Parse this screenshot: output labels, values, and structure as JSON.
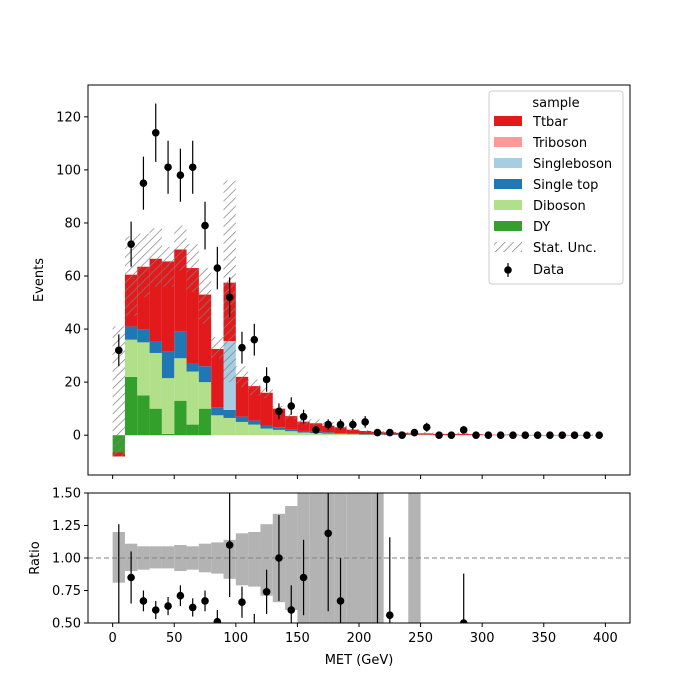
{
  "chart_data": [
    {
      "type": "stacked-histogram",
      "ylabel": "Events",
      "xlim": [
        -20,
        420
      ],
      "ylim": [
        -15,
        132
      ],
      "x_ticks": [
        "0",
        "50",
        "100",
        "150",
        "200",
        "250",
        "300",
        "350",
        "400"
      ],
      "y_ticks": [
        "0",
        "20",
        "40",
        "60",
        "80",
        "100",
        "120"
      ],
      "bin_edges": [
        0,
        10,
        20,
        30,
        40,
        50,
        60,
        70,
        80,
        90,
        100,
        110,
        120,
        130,
        140,
        150,
        160,
        170,
        180,
        190,
        200,
        210,
        220,
        230,
        240,
        250,
        260,
        270,
        280,
        290,
        300,
        310,
        320,
        330,
        340,
        350,
        360,
        370,
        380,
        390,
        400
      ],
      "legend_title": "sample",
      "legend_position": "top-right",
      "series": [
        {
          "name": "DY",
          "color": "#33a02c",
          "values": [
            -8,
            22,
            15,
            10,
            0.5,
            13,
            4,
            10,
            0,
            0,
            0,
            0,
            0,
            0,
            0,
            0,
            0,
            0,
            0,
            0,
            0,
            0,
            0,
            0,
            0,
            0,
            0,
            0,
            0,
            0,
            0,
            0,
            0,
            0,
            0,
            0,
            0,
            0,
            0,
            0
          ]
        },
        {
          "name": "Diboson",
          "color": "#b2df8a",
          "values": [
            0,
            14,
            20,
            21,
            21,
            16,
            20,
            10,
            7.5,
            6.5,
            5,
            4,
            2.5,
            2,
            1.5,
            1,
            0.8,
            0.6,
            0.5,
            0.4,
            0.3,
            0.3,
            0.2,
            0.2,
            0.2,
            0.2,
            0.1,
            0.1,
            0.1,
            0.1,
            0,
            0,
            0,
            0,
            0,
            0,
            0,
            0,
            0,
            0
          ]
        },
        {
          "name": "Single top",
          "color": "#1f78b4",
          "values": [
            0,
            5,
            5,
            4.5,
            10,
            10,
            3,
            6,
            3,
            3,
            2,
            1.5,
            1,
            1,
            0.7,
            0.6,
            0.5,
            0.5,
            0.3,
            0.2,
            0.1,
            0.1,
            0.1,
            0.1,
            0,
            0,
            0,
            0,
            0,
            0,
            0,
            0,
            0,
            0,
            0,
            0,
            0,
            0,
            0,
            0
          ]
        },
        {
          "name": "Singleboson",
          "color": "#a6cee3",
          "values": [
            0,
            0,
            0,
            0,
            0,
            0,
            0,
            0,
            0,
            26,
            0,
            0,
            0,
            0,
            0,
            0,
            0,
            0,
            0,
            0,
            0,
            0,
            0,
            0,
            0,
            0,
            0,
            0,
            0,
            0,
            0,
            0,
            0,
            0,
            0,
            0,
            0,
            0,
            0,
            0
          ]
        },
        {
          "name": "Triboson",
          "color": "#fb9a99",
          "values": [
            0,
            0,
            0,
            0,
            0,
            0,
            0,
            0,
            0,
            0,
            0,
            0,
            0,
            0,
            0,
            0,
            0,
            0,
            0,
            0,
            0,
            0,
            0,
            0,
            0,
            0,
            0,
            0,
            0,
            0,
            0,
            0,
            0,
            0,
            0,
            0,
            0,
            0,
            0,
            0
          ]
        },
        {
          "name": "Ttbar",
          "color": "#e31a1c",
          "values": [
            1.5,
            19.5,
            23.5,
            31,
            34,
            31,
            36,
            27,
            22,
            22,
            15,
            13,
            12.5,
            7,
            5,
            3.5,
            3.2,
            2.5,
            2.2,
            1.5,
            1.2,
            0.9,
            0.8,
            0.6,
            0.5,
            0.5,
            0.4,
            0.4,
            0.4,
            0.3,
            0.2,
            0.2,
            0.2,
            0.1,
            0.1,
            0.1,
            0.1,
            0.1,
            0.1,
            0
          ]
        }
      ],
      "stat_unc": {
        "name": "Stat. Unc.",
        "up": [
          41,
          75,
          76,
          78,
          71,
          79,
          72,
          63,
          37,
          96,
          26,
          21,
          18,
          11,
          8,
          7,
          6,
          5,
          4,
          3,
          2,
          2,
          1.5,
          1.5,
          1,
          1.2,
          1,
          1,
          1,
          0.7,
          0.5,
          0.5,
          0.4,
          0.3,
          0.2,
          0.2,
          0.2,
          0.2,
          0.2,
          0.1
        ],
        "down": [
          -8,
          45,
          52,
          56,
          56,
          62,
          54,
          42,
          29,
          20,
          18,
          15,
          14,
          9,
          6,
          4,
          3.8,
          3.2,
          2.5,
          1.6,
          1,
          0.5,
          0.5,
          0.2,
          0,
          0,
          0,
          0,
          0,
          0,
          0,
          0,
          0,
          0,
          0,
          0,
          0,
          0,
          0,
          0
        ]
      },
      "data": {
        "name": "Data",
        "x": [
          5,
          15,
          25,
          35,
          45,
          55,
          65,
          75,
          85,
          95,
          105,
          115,
          125,
          135,
          145,
          155,
          165,
          175,
          185,
          195,
          205,
          215,
          225,
          235,
          245,
          255,
          265,
          275,
          285,
          295,
          305,
          315,
          325,
          335,
          345,
          355,
          365,
          375,
          385,
          395
        ],
        "y": [
          32,
          72,
          95,
          114,
          101,
          98,
          101,
          79,
          63,
          52,
          33,
          36,
          21,
          9,
          11,
          7,
          2,
          4,
          4,
          4,
          5,
          1,
          1,
          0,
          1,
          3,
          0,
          0,
          2,
          0,
          0,
          0,
          0,
          0,
          0,
          0,
          0,
          0,
          0,
          0
        ],
        "yerr": [
          6,
          8.5,
          10,
          11,
          10,
          10,
          10,
          9,
          8,
          7.5,
          6,
          6,
          4.6,
          3,
          3.3,
          2.6,
          1.4,
          2,
          2,
          2,
          2.2,
          1,
          1,
          0,
          1,
          1.7,
          0,
          0,
          1.4,
          0,
          0,
          0,
          0,
          0,
          0,
          0,
          0,
          0,
          0,
          0
        ]
      }
    },
    {
      "type": "ratio",
      "xlabel": "MET (GeV)",
      "ylabel": "Ratio",
      "xlim": [
        -20,
        420
      ],
      "ylim": [
        0.5,
        1.5
      ],
      "reference_line": 1.0,
      "x_ticks": [
        "0",
        "50",
        "100",
        "150",
        "200",
        "250",
        "300",
        "350",
        "400"
      ],
      "y_ticks": [
        "0.50",
        "0.75",
        "1.00",
        "1.25",
        "1.50"
      ],
      "band_up": [
        1.2,
        1.11,
        1.09,
        1.09,
        1.09,
        1.1,
        1.09,
        1.11,
        1.12,
        1.14,
        1.19,
        1.2,
        1.26,
        1.34,
        1.4,
        1.5,
        1.5,
        1.5,
        1.5,
        1.5,
        1.5,
        1.5,
        null,
        null,
        1.5,
        null,
        null,
        null,
        null,
        null,
        null,
        null,
        null,
        null,
        null,
        null,
        null,
        null,
        null,
        null
      ],
      "band_down": [
        0.81,
        0.9,
        0.91,
        0.92,
        0.92,
        0.9,
        0.91,
        0.89,
        0.88,
        0.84,
        0.79,
        0.78,
        0.71,
        0.66,
        0.6,
        0.5,
        0.5,
        0.5,
        0.5,
        0.5,
        0.5,
        0.5,
        null,
        null,
        0.5,
        null,
        null,
        null,
        null,
        null,
        null,
        null,
        null,
        null,
        null,
        null,
        null,
        null,
        null,
        null
      ],
      "x": [
        5,
        15,
        25,
        35,
        45,
        55,
        65,
        75,
        85,
        95,
        105,
        115,
        125,
        135,
        145,
        155,
        165,
        175,
        185,
        195,
        205,
        215,
        225,
        235,
        245,
        255,
        265,
        275,
        285,
        295,
        305,
        315,
        325,
        335,
        345,
        355,
        365,
        375,
        385,
        395
      ],
      "ratio": [
        null,
        0.85,
        0.67,
        0.6,
        0.63,
        0.71,
        0.62,
        0.67,
        0.51,
        1.1,
        0.66,
        null,
        0.74,
        1.0,
        0.6,
        0.85,
        null,
        1.19,
        0.67,
        null,
        null,
        null,
        0.56,
        null,
        null,
        null,
        null,
        null,
        0.5,
        null,
        null,
        null,
        null,
        null,
        null,
        null,
        null,
        null,
        null,
        null
      ],
      "ratio_err": [
        0,
        0.2,
        0.08,
        0.07,
        0.07,
        0.08,
        0.07,
        0.08,
        0.09,
        0.4,
        0.12,
        0,
        0.17,
        0.33,
        0.19,
        0.29,
        0,
        0.6,
        0.33,
        0,
        0,
        0,
        0.6,
        0,
        0,
        0,
        0,
        0,
        0.38,
        0,
        0,
        0,
        0,
        0,
        0,
        0,
        0,
        0,
        0,
        0
      ],
      "extra_bars": [
        {
          "x": 5,
          "lo": 0.5,
          "hi": 1.26
        },
        {
          "x": 115,
          "lo": 0.5,
          "hi": 0.57
        },
        {
          "x": 215,
          "lo": 0.5,
          "hi": 1.5
        }
      ]
    }
  ]
}
